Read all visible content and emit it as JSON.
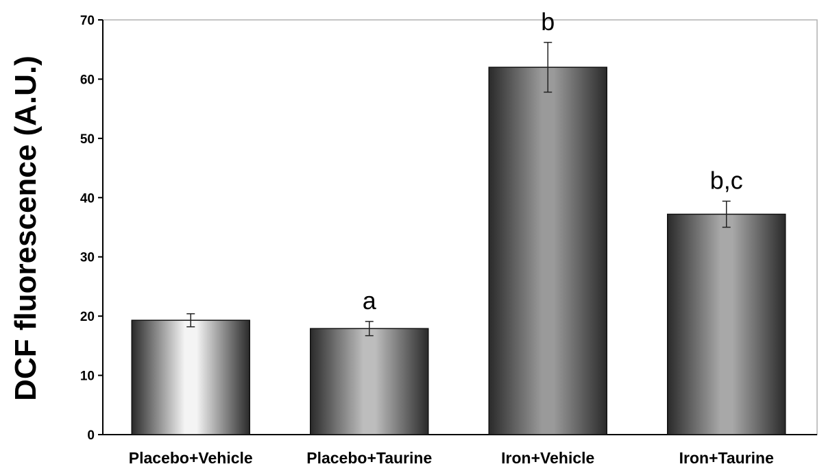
{
  "chart_data": {
    "type": "bar",
    "title": "",
    "xlabel": "",
    "ylabel": "DCF fluorescence (A.U.)",
    "ylim": [
      0,
      70
    ],
    "yticks": [
      0,
      10,
      20,
      30,
      40,
      50,
      60,
      70
    ],
    "grid": false,
    "legend": "none",
    "categories": [
      "Placebo+Vehicle",
      "Placebo+Taurine",
      "Iron+Vehicle",
      "Iron+Taurine"
    ],
    "values": [
      19.3,
      17.9,
      62.0,
      37.2
    ],
    "error": [
      1.1,
      1.2,
      4.2,
      2.2
    ],
    "annotations": [
      "",
      "a",
      "b",
      "b,c"
    ],
    "colors": {
      "dark": "#2a2a2a",
      "light_bar1": "#f4f4f4",
      "light_bar2": "#bdbdbd",
      "light_bar3": "#9a9a9a",
      "light_bar4": "#a8a8a8",
      "frame": "#b0b0b0"
    }
  }
}
